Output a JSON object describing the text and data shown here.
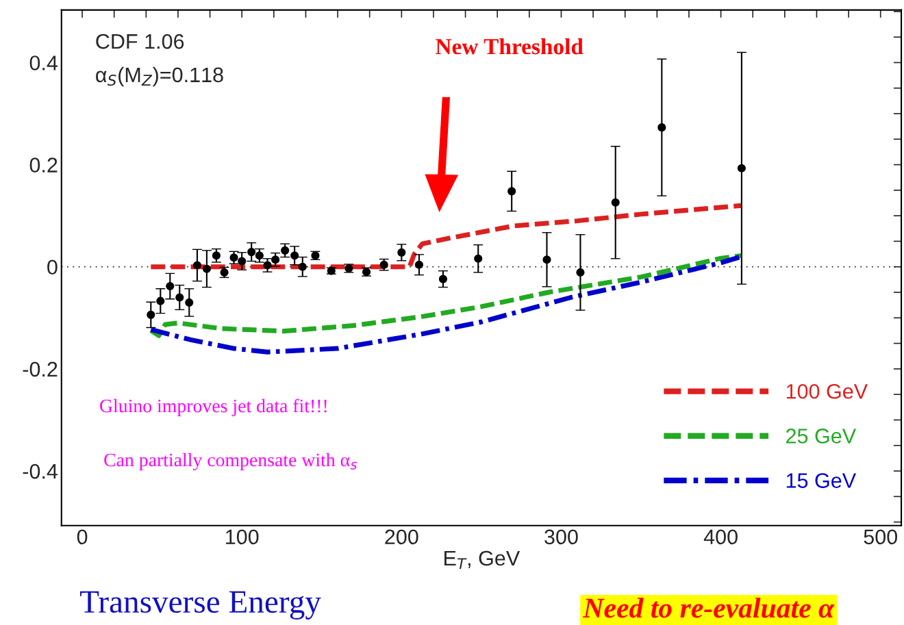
{
  "chart_data": {
    "type": "scatter",
    "xlabel": "E$_{T}$, GeV",
    "xlim": [
      -13,
      513
    ],
    "ylim": [
      -0.507,
      0.503
    ],
    "xticks": [
      0,
      {
        "value": 20,
        "label": null
      },
      {
        "value": 40,
        "label": null
      },
      {
        "value": 60,
        "label": null
      },
      {
        "value": 80,
        "label": null
      },
      100,
      {
        "value": 120,
        "label": null
      },
      {
        "value": 140,
        "label": null
      },
      {
        "value": 160,
        "label": null
      },
      {
        "value": 180,
        "label": null
      },
      200,
      {
        "value": 220,
        "label": null
      },
      {
        "value": 240,
        "label": null
      },
      {
        "value": 260,
        "label": null
      },
      {
        "value": 280,
        "label": null
      },
      300,
      {
        "value": 320,
        "label": null
      },
      {
        "value": 340,
        "label": null
      },
      {
        "value": 360,
        "label": null
      },
      {
        "value": 380,
        "label": null
      },
      400,
      {
        "value": 420,
        "label": null
      },
      {
        "value": 440,
        "label": null
      },
      {
        "value": 460,
        "label": null
      },
      {
        "value": 480,
        "label": null
      },
      500
    ],
    "yticks": [
      {
        "value": -0.5,
        "label": null
      },
      {
        "value": -0.45,
        "label": null
      },
      -0.4,
      {
        "value": -0.35,
        "label": null
      },
      {
        "value": -0.3,
        "label": null
      },
      {
        "value": -0.25,
        "label": null
      },
      -0.2,
      {
        "value": -0.15,
        "label": null
      },
      {
        "value": -0.1,
        "label": null
      },
      {
        "value": -0.05,
        "label": null
      },
      0,
      {
        "value": 0.05,
        "label": null
      },
      {
        "value": 0.1,
        "label": null
      },
      {
        "value": 0.15,
        "label": null
      },
      0.2,
      {
        "value": 0.25,
        "label": null
      },
      {
        "value": 0.3,
        "label": null
      },
      {
        "value": 0.35,
        "label": null
      },
      0.4,
      {
        "value": 0.45,
        "label": null
      },
      {
        "value": 0.5,
        "label": null
      }
    ],
    "grid": false,
    "legend": "bottom right",
    "series": [
      {
        "type": "line",
        "name": "100 GeV",
        "color": "#dd2020",
        "line_style": "dashed",
        "marker": "none",
        "x": [
          43,
          205,
          208,
          213,
          230,
          270,
          310,
          350,
          413
        ],
        "values": [
          0,
          0,
          0.025,
          0.045,
          0.056,
          0.08,
          0.09,
          0.103,
          0.12
        ]
      },
      {
        "type": "line",
        "name": "25 GeV",
        "color": "#22aa22",
        "line_style": "dashed",
        "marker": "none",
        "x": [
          43,
          48,
          52,
          60,
          87,
          126,
          170,
          212,
          250,
          292,
          350,
          399,
          413
        ],
        "values": [
          -0.125,
          -0.135,
          -0.113,
          -0.11,
          -0.121,
          -0.126,
          -0.115,
          -0.098,
          -0.078,
          -0.05,
          -0.02,
          0.016,
          0.022
        ]
      },
      {
        "type": "line",
        "name": "15 GeV",
        "color": "#0000cc",
        "line_style": "dashdot",
        "marker": "none",
        "x": [
          43,
          68,
          95,
          116,
          160,
          212,
          250,
          306,
          350,
          399,
          413
        ],
        "values": [
          -0.123,
          -0.143,
          -0.16,
          -0.167,
          -0.16,
          -0.132,
          -0.108,
          -0.06,
          -0.03,
          0.007,
          0.02
        ]
      },
      {
        "color": "#000000",
        "marker": "circle",
        "x": [
          43,
          49,
          55,
          61,
          67,
          72,
          78,
          84,
          89,
          95,
          100,
          106,
          111,
          116,
          121,
          127,
          133,
          138,
          146,
          156,
          167,
          178,
          189,
          200,
          211,
          226,
          248,
          269,
          291,
          312,
          334,
          363,
          413
        ],
        "values": [
          -0.094,
          -0.067,
          -0.038,
          -0.06,
          -0.07,
          0.003,
          -0.004,
          0.022,
          -0.011,
          0.018,
          0.011,
          0.029,
          0.022,
          0.003,
          0.014,
          0.032,
          0.022,
          0,
          0.022,
          -0.008,
          -0.003,
          -0.01,
          0.004,
          0.028,
          0.004,
          -0.024,
          0.016,
          0.148,
          0.014,
          -0.011,
          0.126,
          0.273,
          0.193
        ],
        "errors": [
          0.025,
          0.024,
          0.025,
          0.024,
          0.027,
          0.031,
          0.036,
          0.013,
          0.01,
          0.012,
          0.017,
          0.018,
          0.013,
          0.013,
          0.013,
          0.013,
          0.018,
          0.019,
          0.008,
          0.006,
          0.008,
          0.008,
          0.011,
          0.016,
          0.02,
          0.016,
          0.027,
          0.039,
          0.053,
          0.074,
          0.11,
          0.134,
          0.227
        ]
      }
    ],
    "ref_lines": [
      {
        "axis": "y",
        "value": 0,
        "color": "#000000",
        "line_style": "dotted"
      }
    ],
    "annotations": [
      "CDF 1.06",
      "α$_{S}$(M$_{Z}$)=0.118",
      "New Threshold",
      "Gluino improves jet data fit!!!",
      "Can partially compensate with α$_{s}$",
      "Transverse Energy",
      "Need to re-evaluate α"
    ]
  }
}
